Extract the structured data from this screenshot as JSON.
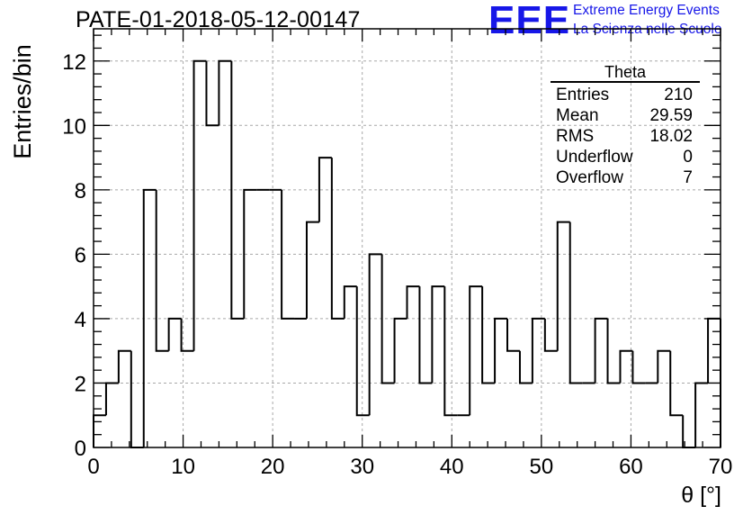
{
  "header": {
    "title": "PATE-01-2018-05-12-00147",
    "logo_text": "EEE",
    "logo_line1": "Extreme Energy Events",
    "logo_line2": "La Scienza nelle Scuole"
  },
  "stats": {
    "title": "Theta",
    "rows": [
      {
        "label": "Entries",
        "value": "210"
      },
      {
        "label": "Mean",
        "value": "29.59"
      },
      {
        "label": "RMS",
        "value": "18.02"
      },
      {
        "label": "Underflow",
        "value": "0"
      },
      {
        "label": "Overflow",
        "value": "7"
      }
    ]
  },
  "chart_data": {
    "type": "bar",
    "style": "step-histogram",
    "xlabel": "θ [°]",
    "ylabel": "Entries/bin",
    "xlim": [
      0,
      70
    ],
    "ylim": [
      0,
      13
    ],
    "xticks": [
      0,
      10,
      20,
      30,
      40,
      50,
      60,
      70
    ],
    "yticks": [
      0,
      2,
      4,
      6,
      8,
      10,
      12
    ],
    "grid": true,
    "bin_width": 1.4,
    "bin_edges_start": 0,
    "values": [
      1,
      2,
      3,
      0,
      8,
      3,
      4,
      3,
      12,
      10,
      12,
      4,
      8,
      8,
      8,
      4,
      4,
      7,
      9,
      4,
      5,
      1,
      6,
      2,
      4,
      5,
      2,
      5,
      1,
      1,
      5,
      2,
      4,
      3,
      2,
      4,
      3,
      7,
      2,
      2,
      4,
      2,
      3,
      2,
      2,
      3,
      1,
      0,
      2,
      4
    ]
  }
}
